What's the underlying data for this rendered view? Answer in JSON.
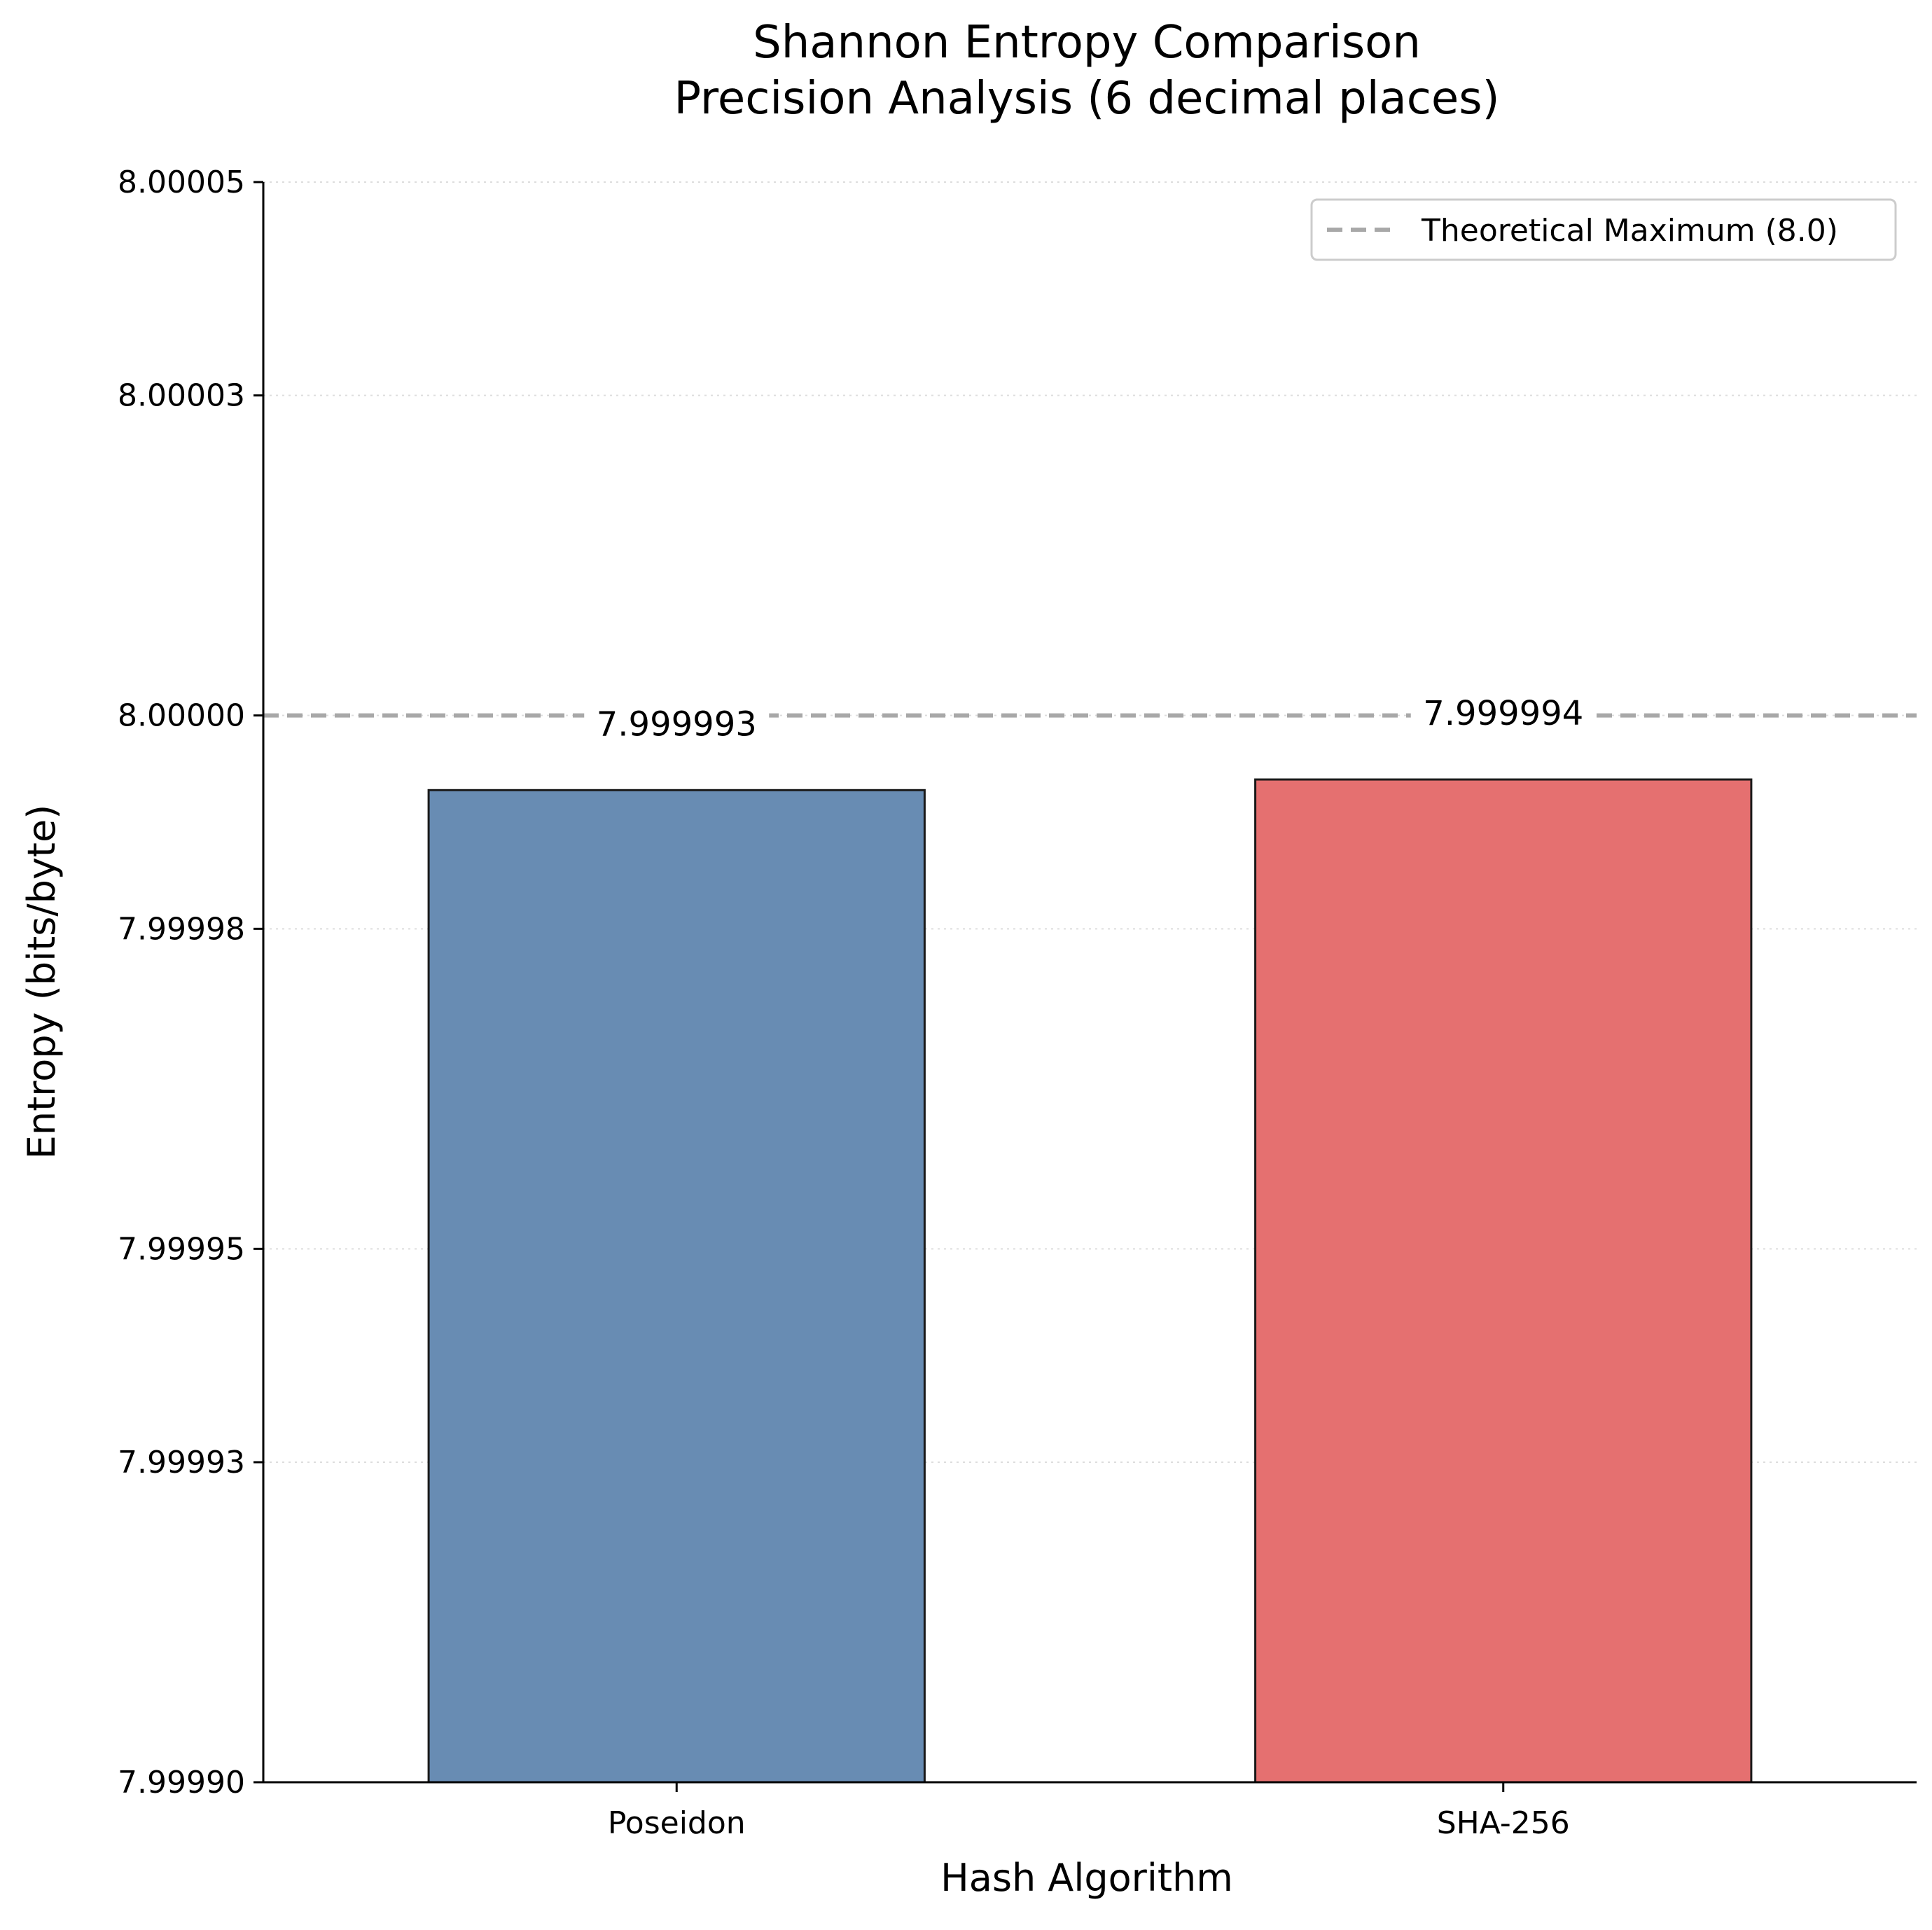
{
  "chart_data": {
    "type": "bar",
    "title_line1": "Shannon Entropy Comparison",
    "title_line2": "Precision Analysis (6 decimal places)",
    "xlabel": "Hash Algorithm",
    "ylabel": "Entropy (bits/byte)",
    "categories": [
      "Poseidon",
      "SHA-256"
    ],
    "values": [
      7.999993,
      7.999994
    ],
    "value_labels": [
      "7.999993",
      "7.999994"
    ],
    "colors": [
      "#688cb3",
      "#e57070"
    ],
    "ylim": [
      7.9999,
      8.00005
    ],
    "yticks": [
      7.9999,
      7.99993,
      7.99995,
      7.99998,
      8.0,
      8.00003,
      8.00005
    ],
    "ytick_labels": [
      "7.99990",
      "7.99993",
      "7.99995",
      "7.99998",
      "8.00000",
      "8.00003",
      "8.00005"
    ],
    "reference_line": {
      "value": 8.0,
      "label": "Theoretical Maximum (8.0)",
      "color": "#a8a8a8"
    },
    "legend_position": "top-right",
    "grid": "y-dotted"
  }
}
